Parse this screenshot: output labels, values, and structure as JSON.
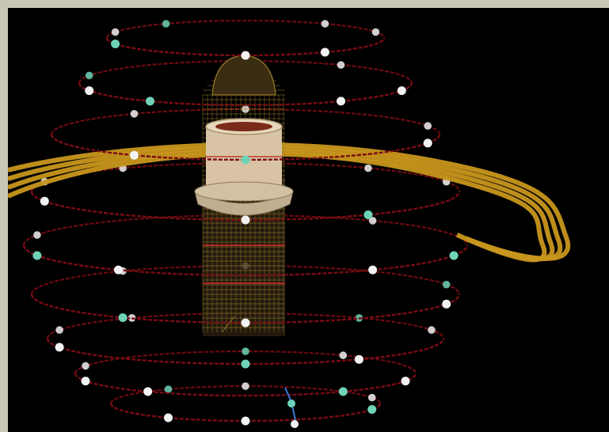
{
  "scene": {
    "colors": {
      "frame": "#c9c6b8",
      "background": "#000000",
      "orbit_rings": "#7a0c14",
      "spiral_ribbon": "#c8961c",
      "tower_wireframe": "#9a7c2a",
      "tower_cylinder": "#d8c4a4",
      "node_white": "#f2f2f2",
      "node_teal": "#6fd3b8",
      "axis_marker": "#3a7ad8"
    },
    "ring_count": 9,
    "ribbon_strands": 4
  }
}
